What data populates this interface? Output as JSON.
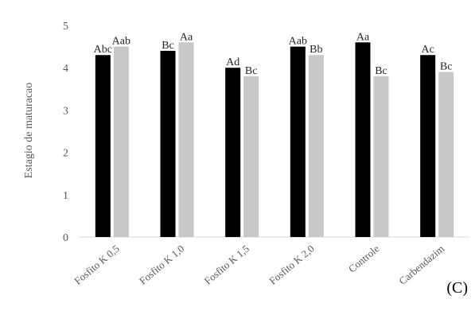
{
  "chart_data": {
    "type": "bar",
    "categories": [
      "Fosfito K 0,5",
      "Fosfito K 1,0",
      "Fosfito K 1,5",
      "Fosfito K 2,0",
      "Controle",
      "Carbendazim"
    ],
    "series": [
      {
        "values": [
          4.3,
          4.4,
          4.0,
          4.5,
          4.6,
          4.3
        ],
        "labels": [
          "Abc",
          "Bc",
          "Ad",
          "Aab",
          "Aa",
          "Ac"
        ],
        "color": "#000000"
      },
      {
        "values": [
          4.5,
          4.6,
          3.8,
          4.3,
          3.8,
          3.9
        ],
        "labels": [
          "Aab",
          "Aa",
          "Bc",
          "Bb",
          "Bc",
          "Bc"
        ],
        "color": "#c8c8c8"
      }
    ],
    "ylabel": "Estagio de maturacao",
    "xlabel": "",
    "ylim": [
      0,
      5
    ],
    "yticks": [
      0,
      1,
      2,
      3,
      4,
      5
    ],
    "grid": false,
    "panel_label": "(C)"
  }
}
